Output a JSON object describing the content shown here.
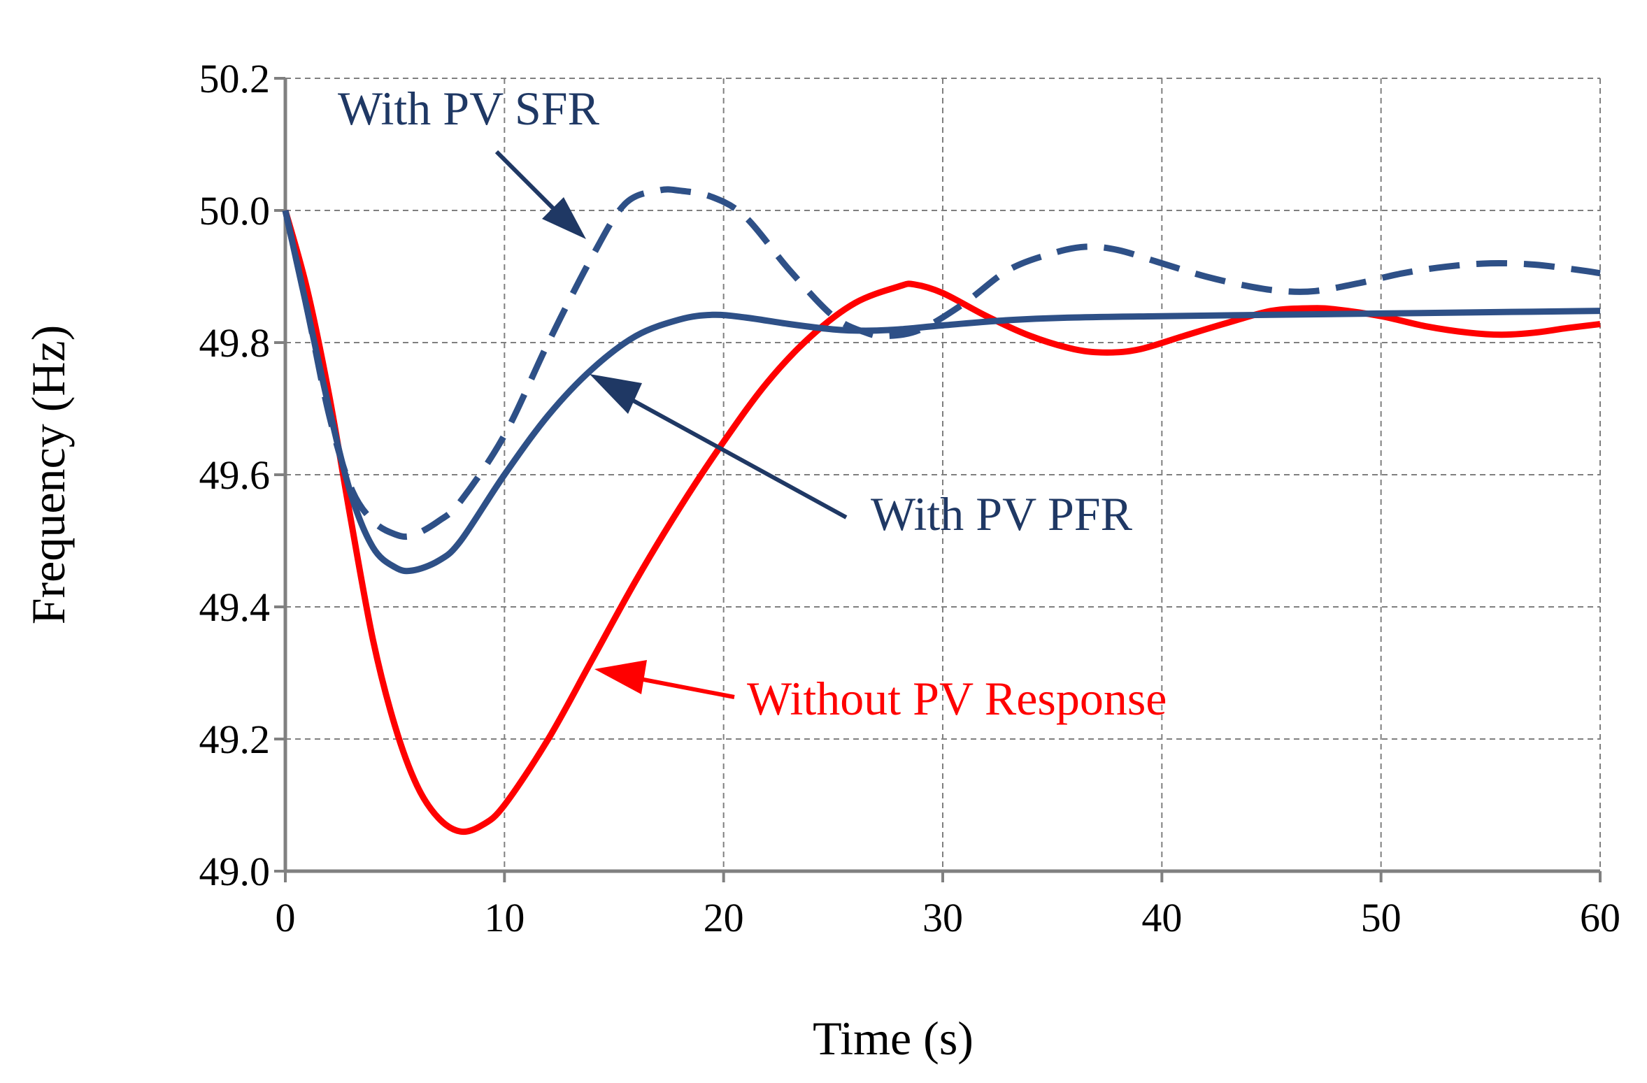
{
  "chart_data": {
    "type": "line",
    "xlabel": "Time (s)",
    "ylabel": "Frequency  (Hz)",
    "xlim": [
      0,
      60
    ],
    "ylim": [
      49.0,
      50.2
    ],
    "x_ticks": [
      "0",
      "10",
      "20",
      "30",
      "40",
      "50",
      "60"
    ],
    "y_ticks": [
      "49.0",
      "49.2",
      "49.4",
      "49.6",
      "49.8",
      "50.0",
      "50.2"
    ],
    "grid": true,
    "legend": "none",
    "series": [
      {
        "name": "Without PV Response",
        "color": "#ff0000",
        "style": "solid",
        "x": [
          0,
          1,
          2,
          3,
          4,
          5,
          6,
          7,
          8,
          9,
          10,
          12,
          14,
          16,
          18,
          20,
          22,
          24,
          26,
          28,
          28.7,
          30,
          32,
          34,
          36,
          37.5,
          39,
          41,
          43,
          45,
          46.8,
          48,
          50,
          52,
          54,
          55.5,
          57,
          58.5,
          60
        ],
        "y": [
          50.0,
          49.88,
          49.72,
          49.53,
          49.35,
          49.22,
          49.13,
          49.08,
          49.06,
          49.07,
          49.1,
          49.2,
          49.32,
          49.44,
          49.55,
          49.65,
          49.74,
          49.81,
          49.86,
          49.885,
          49.888,
          49.875,
          49.84,
          49.81,
          49.79,
          49.785,
          49.79,
          49.81,
          49.83,
          49.848,
          49.852,
          49.85,
          49.84,
          49.825,
          49.815,
          49.812,
          49.815,
          49.822,
          49.828
        ]
      },
      {
        "name": "With PV PFR",
        "color": "#2e5087",
        "style": "solid",
        "x": [
          0,
          1,
          2,
          3,
          4,
          5,
          5.8,
          7,
          8,
          10,
          12,
          14,
          16,
          18,
          19.5,
          21,
          23,
          25,
          26.5,
          28,
          30,
          33,
          36,
          40,
          45,
          50,
          55,
          60
        ],
        "y": [
          50.0,
          49.85,
          49.7,
          49.57,
          49.49,
          49.46,
          49.455,
          49.47,
          49.5,
          49.6,
          49.69,
          49.76,
          49.81,
          49.835,
          49.842,
          49.838,
          49.828,
          49.82,
          49.818,
          49.82,
          49.826,
          49.834,
          49.838,
          49.84,
          49.842,
          49.844,
          49.846,
          49.848
        ]
      },
      {
        "name": "With PV SFR",
        "color": "#2e5087",
        "style": "dashed",
        "x": [
          0,
          1,
          2,
          3,
          4,
          5,
          5.8,
          7,
          8,
          10,
          12,
          14,
          15.5,
          17,
          18,
          19.5,
          21,
          23,
          25,
          26.5,
          27.5,
          29,
          31,
          33,
          35,
          36.5,
          38,
          40,
          42,
          44,
          45.5,
          47,
          49,
          51,
          53,
          55,
          57,
          59,
          60
        ],
        "y": [
          50.0,
          49.85,
          49.69,
          49.58,
          49.53,
          49.51,
          49.508,
          49.53,
          49.56,
          49.66,
          49.8,
          49.93,
          50.01,
          50.03,
          50.03,
          50.02,
          49.99,
          49.91,
          49.84,
          49.815,
          49.81,
          49.82,
          49.86,
          49.91,
          49.935,
          49.945,
          49.94,
          49.92,
          49.9,
          49.885,
          49.878,
          49.878,
          49.89,
          49.905,
          49.915,
          49.92,
          49.918,
          49.91,
          49.905
        ]
      }
    ],
    "annotations": [
      {
        "text": "With PV SFR",
        "color": "#1f3864"
      },
      {
        "text": "With PV PFR",
        "color": "#1f3864"
      },
      {
        "text": "Without PV Response",
        "color": "#ff0000"
      }
    ]
  }
}
